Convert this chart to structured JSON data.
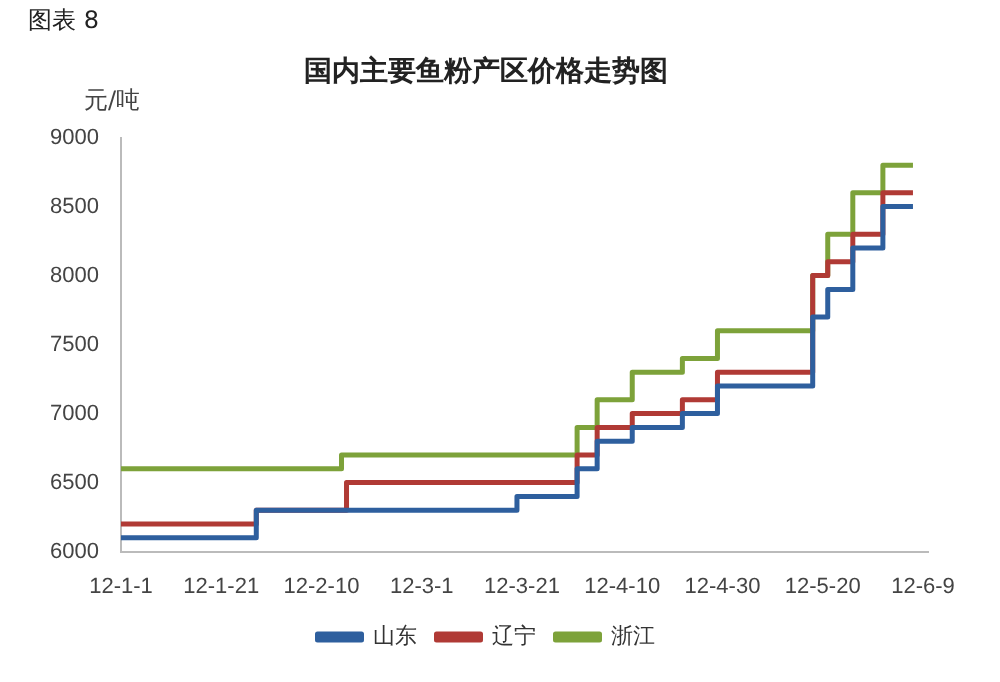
{
  "chart_data": {
    "type": "step",
    "title": "国内主要鱼粉产区价格走势图",
    "ylabel": "元/吨",
    "annotations": [
      "图表 8"
    ],
    "xlim": [
      "--01-01",
      "--06-10"
    ],
    "ylim": [
      6000,
      9000
    ],
    "yticks": [
      6000,
      6500,
      7000,
      7500,
      8000,
      8500,
      9000
    ],
    "xticks": [
      {
        "value": "--01-01",
        "label": "12-1-1"
      },
      {
        "value": "--01-21",
        "label": "12-1-21"
      },
      {
        "value": "--02-10",
        "label": "12-2-10"
      },
      {
        "value": "--03-01",
        "label": "12-3-1"
      },
      {
        "value": "--03-21",
        "label": "12-3-21"
      },
      {
        "value": "--04-10",
        "label": "12-4-10"
      },
      {
        "value": "--04-30",
        "label": "12-4-30"
      },
      {
        "value": "--05-20",
        "label": "12-5-20"
      },
      {
        "value": "--06-09",
        "label": "12-6-9"
      }
    ],
    "grid": false,
    "legend": "bottom",
    "marker": "none",
    "line_style": "solid",
    "series": [
      {
        "name": "山东",
        "color": "#2e5f9e",
        "x": [
          "--01-01",
          "--01-28",
          "--03-20",
          "--04-01",
          "--04-05",
          "--04-12",
          "--04-22",
          "--04-29",
          "--05-18",
          "--05-21",
          "--05-26",
          "--06-01",
          "--06-07"
        ],
        "values": [
          6100,
          6300,
          6400,
          6600,
          6800,
          6900,
          7000,
          7200,
          7700,
          7900,
          8200,
          8500,
          8500
        ]
      },
      {
        "name": "辽宁",
        "color": "#b03a35",
        "x": [
          "--01-01",
          "--01-28",
          "--02-15",
          "--04-01",
          "--04-05",
          "--04-12",
          "--04-22",
          "--04-29",
          "--05-18",
          "--05-21",
          "--05-26",
          "--06-01",
          "--06-07"
        ],
        "values": [
          6200,
          6300,
          6500,
          6700,
          6900,
          7000,
          7100,
          7300,
          8000,
          8100,
          8300,
          8600,
          8600
        ]
      },
      {
        "name": "浙江",
        "color": "#7da23a",
        "x": [
          "--01-01",
          "--02-14",
          "--04-01",
          "--04-05",
          "--04-12",
          "--04-22",
          "--04-29",
          "--05-18",
          "--05-21",
          "--05-26",
          "--06-01",
          "--06-07"
        ],
        "values": [
          6600,
          6700,
          6900,
          7100,
          7300,
          7400,
          7600,
          8000,
          8300,
          8600,
          8800,
          8800
        ]
      }
    ]
  }
}
